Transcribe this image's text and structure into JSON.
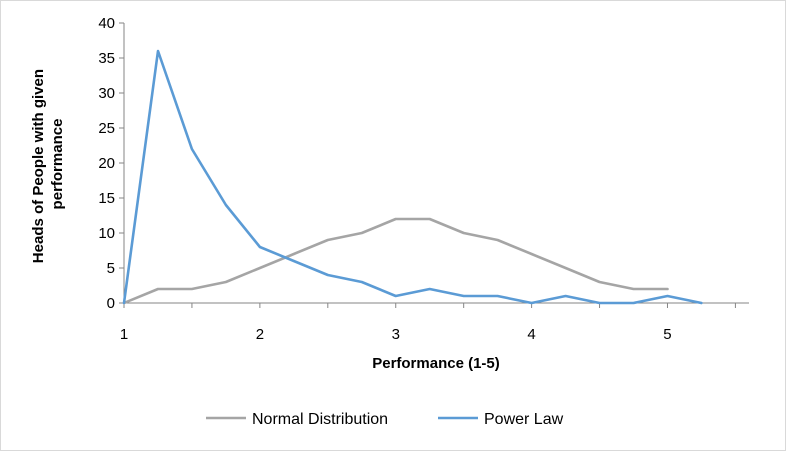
{
  "chart_data": {
    "type": "line",
    "title": "",
    "xlabel": "Performance (1-5)",
    "ylabel_lines": [
      "Heads of People with given",
      "performance"
    ],
    "xlim": [
      1,
      5.6
    ],
    "ylim": [
      0,
      40
    ],
    "xticks": [
      "1",
      "2",
      "3",
      "4",
      "5"
    ],
    "yticks": [
      "0",
      "5",
      "10",
      "15",
      "20",
      "25",
      "30",
      "35",
      "40"
    ],
    "grid": false,
    "legend": "bottom",
    "series": [
      {
        "name": "Normal Distribution",
        "color": "#a5a5a5",
        "points": [
          [
            1,
            0
          ],
          [
            1.25,
            2
          ],
          [
            1.5,
            2
          ],
          [
            1.75,
            3
          ],
          [
            2,
            5
          ],
          [
            2.25,
            7
          ],
          [
            2.5,
            9
          ],
          [
            2.75,
            10
          ],
          [
            3,
            12
          ],
          [
            3.25,
            12
          ],
          [
            3.5,
            10
          ],
          [
            3.75,
            9
          ],
          [
            4,
            7
          ],
          [
            4.25,
            5
          ],
          [
            4.5,
            3
          ],
          [
            4.75,
            2
          ],
          [
            5,
            2
          ]
        ]
      },
      {
        "name": "Power Law",
        "color": "#5b9bd5",
        "points": [
          [
            1,
            0
          ],
          [
            1.25,
            36
          ],
          [
            1.5,
            22
          ],
          [
            1.75,
            14
          ],
          [
            2,
            8
          ],
          [
            2.25,
            6
          ],
          [
            2.5,
            4
          ],
          [
            2.75,
            3
          ],
          [
            3,
            1
          ],
          [
            3.25,
            2
          ],
          [
            3.5,
            1
          ],
          [
            3.75,
            1
          ],
          [
            4,
            0
          ],
          [
            4.25,
            1
          ],
          [
            4.5,
            0
          ],
          [
            4.75,
            0
          ],
          [
            5,
            1
          ],
          [
            5.25,
            0
          ]
        ]
      }
    ]
  }
}
